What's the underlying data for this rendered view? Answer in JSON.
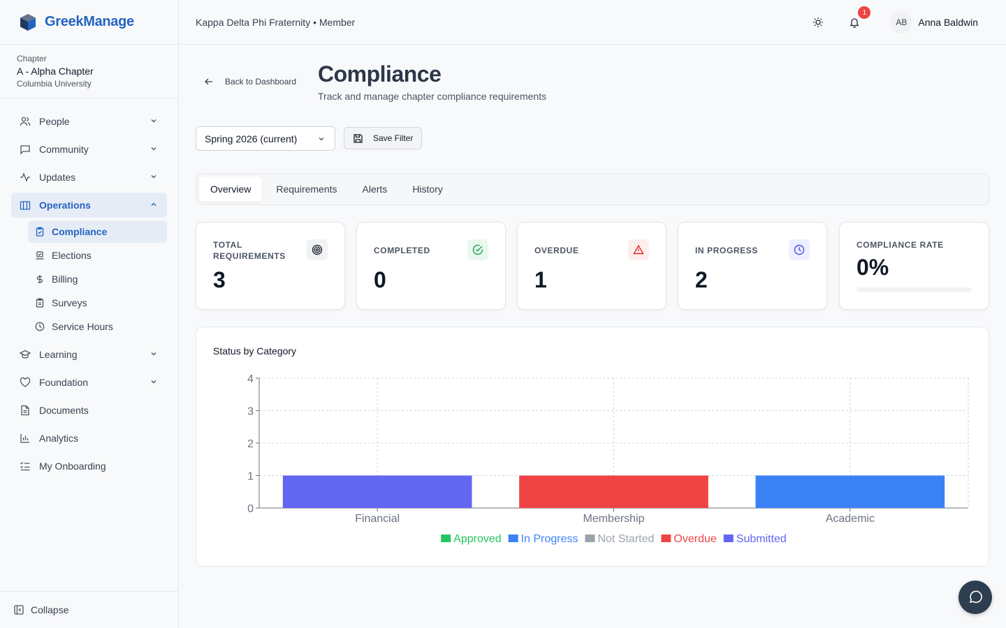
{
  "brand": {
    "name": "GreekManage",
    "icon": "cube-logo"
  },
  "chapter": {
    "label": "Chapter",
    "name": "A - Alpha Chapter",
    "university": "Columbia University"
  },
  "sidebar": {
    "items": [
      {
        "label": "People",
        "icon": "users-icon",
        "expandable": true
      },
      {
        "label": "Community",
        "icon": "message-square-icon",
        "expandable": true
      },
      {
        "label": "Updates",
        "icon": "activity-icon",
        "expandable": true
      },
      {
        "label": "Operations",
        "icon": "building-icon",
        "expandable": true,
        "expanded": true,
        "active": true
      },
      {
        "label": "Learning",
        "icon": "graduation-cap-icon",
        "expandable": true
      },
      {
        "label": "Foundation",
        "icon": "heart-icon",
        "expandable": true
      },
      {
        "label": "Documents",
        "icon": "file-icon",
        "expandable": false
      },
      {
        "label": "Analytics",
        "icon": "bar-chart-icon",
        "expandable": false
      },
      {
        "label": "My Onboarding",
        "icon": "list-checks-icon",
        "expandable": false
      }
    ],
    "operations_sub": [
      {
        "label": "Compliance",
        "icon": "clipboard-check-icon",
        "active": true
      },
      {
        "label": "Elections",
        "icon": "vote-icon"
      },
      {
        "label": "Billing",
        "icon": "dollar-icon"
      },
      {
        "label": "Surveys",
        "icon": "clipboard-icon"
      },
      {
        "label": "Service Hours",
        "icon": "clock-icon"
      }
    ],
    "collapse_label": "Collapse"
  },
  "topbar": {
    "org": "Kappa Delta Phi Fraternity • Member",
    "notification_count": "1",
    "avatar_initials": "AB",
    "user_name": "Anna Baldwin"
  },
  "page": {
    "back_label": "Back to Dashboard",
    "title": "Compliance",
    "subtitle": "Track and manage chapter compliance requirements",
    "term_select": "Spring 2026 (current)",
    "save_filter": "Save Filter",
    "tabs": [
      "Overview",
      "Requirements",
      "Alerts",
      "History"
    ],
    "active_tab": "Overview"
  },
  "stats": {
    "total": {
      "label": "TOTAL REQUIREMENTS",
      "value": "3",
      "icon": "target-icon"
    },
    "completed": {
      "label": "COMPLETED",
      "value": "0",
      "icon": "check-circle-icon",
      "color": "#16a34a"
    },
    "overdue": {
      "label": "OVERDUE",
      "value": "1",
      "icon": "alert-triangle-icon",
      "color": "#dc2626"
    },
    "in_progress": {
      "label": "IN PROGRESS",
      "value": "2",
      "icon": "clock-icon",
      "color": "#4f46e5"
    },
    "rate": {
      "label": "COMPLIANCE RATE",
      "value": "0%",
      "fraction": 0
    }
  },
  "chart_title": "Status by Category",
  "chart_data": {
    "type": "bar",
    "categories": [
      "Financial",
      "Membership",
      "Academic"
    ],
    "series": [
      {
        "name": "Approved",
        "color": "#22c55e",
        "values": [
          0,
          0,
          0
        ]
      },
      {
        "name": "In Progress",
        "color": "#3b82f6",
        "values": [
          0,
          0,
          1
        ]
      },
      {
        "name": "Not Started",
        "color": "#9ca3af",
        "values": [
          0,
          0,
          0
        ]
      },
      {
        "name": "Overdue",
        "color": "#ef4444",
        "values": [
          0,
          1,
          0
        ]
      },
      {
        "name": "Submitted",
        "color": "#6366f1",
        "values": [
          1,
          0,
          0
        ]
      }
    ],
    "yticks": [
      "0",
      "1",
      "2",
      "3",
      "4"
    ],
    "ylim": [
      0,
      4
    ],
    "stacked": true,
    "grid": true,
    "legend_position": "bottom"
  }
}
